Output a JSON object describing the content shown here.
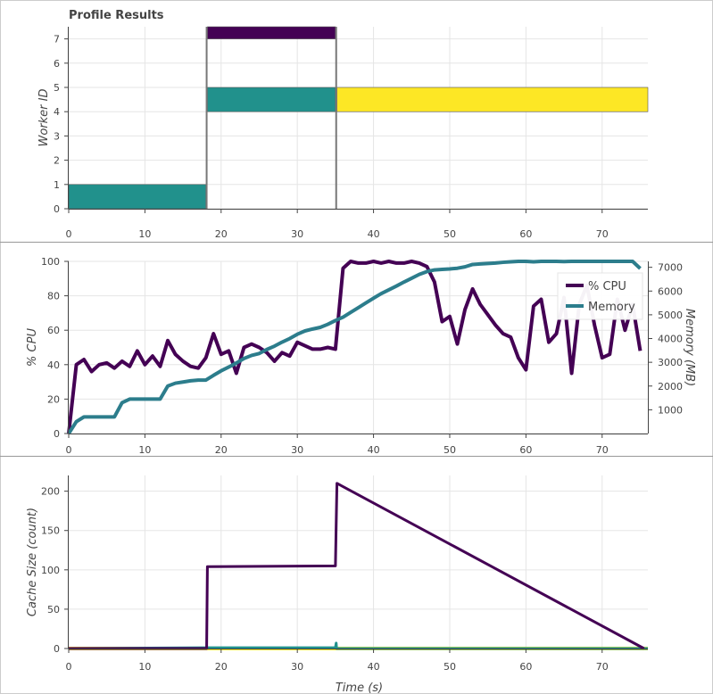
{
  "title": "Profile Results",
  "colors": {
    "purple": "#440154",
    "teal": "#21918c",
    "yellow": "#fde725",
    "memory": "#2c7d8c",
    "grid": "#e5e5e5"
  },
  "chart_data": [
    {
      "type": "bar",
      "name": "profile",
      "title": "Profile Results",
      "xlabel": "",
      "ylabel": "Worker ID",
      "xlim": [
        0,
        76
      ],
      "ylim": [
        0,
        7
      ],
      "xticks": [
        "0",
        "10",
        "20",
        "30",
        "40",
        "50",
        "60",
        "70"
      ],
      "yticks": [
        "0",
        "1",
        "2",
        "3",
        "4",
        "5",
        "6",
        "7"
      ],
      "bars": [
        {
          "start": 0,
          "end": 18,
          "y0": 0,
          "y1": 1,
          "color": "#21918c"
        },
        {
          "start": 18.2,
          "end": 35,
          "y0": 4,
          "y1": 5,
          "color": "#21918c"
        },
        {
          "start": 18.2,
          "end": 35,
          "y0": 7,
          "y1": 7.5,
          "color": "#440154"
        },
        {
          "start": 35.2,
          "end": 76,
          "y0": 4,
          "y1": 5,
          "color": "#fde725"
        }
      ]
    },
    {
      "type": "line",
      "name": "resources",
      "xlabel": "",
      "ylabel": "% CPU",
      "y2label": "Memory (MB)",
      "xlim": [
        0,
        76
      ],
      "ylim": [
        0,
        100
      ],
      "y2lim": [
        0,
        7250
      ],
      "xticks": [
        "0",
        "10",
        "20",
        "30",
        "40",
        "50",
        "60",
        "70"
      ],
      "yticks": [
        "0",
        "20",
        "40",
        "60",
        "80",
        "100"
      ],
      "y2ticks": [
        "1000",
        "2000",
        "3000",
        "4000",
        "5000",
        "6000",
        "7000"
      ],
      "legend": "top-right",
      "series": [
        {
          "name": "% CPU",
          "axis": "left",
          "color": "#440154",
          "x": [
            0,
            1,
            2,
            3,
            4,
            5,
            6,
            7,
            8,
            9,
            10,
            11,
            12,
            13,
            14,
            15,
            16,
            17,
            18,
            19,
            20,
            21,
            22,
            23,
            24,
            25,
            26,
            27,
            28,
            29,
            30,
            31,
            32,
            33,
            34,
            35,
            36,
            37,
            38,
            39,
            40,
            41,
            42,
            43,
            44,
            45,
            46,
            47,
            48,
            49,
            50,
            51,
            52,
            53,
            54,
            55,
            56,
            57,
            58,
            59,
            60,
            61,
            62,
            63,
            64,
            65,
            66,
            67,
            68,
            69,
            70,
            71,
            72,
            73,
            74,
            75
          ],
          "values": [
            0,
            40,
            43,
            36,
            40,
            41,
            38,
            42,
            39,
            48,
            40,
            45,
            39,
            54,
            46,
            42,
            39,
            38,
            44,
            58,
            46,
            48,
            35,
            50,
            52,
            50,
            47,
            42,
            47,
            45,
            53,
            51,
            49,
            49,
            50,
            49,
            96,
            100,
            99,
            99,
            100,
            99,
            100,
            99,
            99,
            100,
            99,
            97,
            88,
            65,
            68,
            52,
            72,
            84,
            75,
            69,
            63,
            58,
            56,
            44,
            37,
            74,
            78,
            53,
            58,
            79,
            35,
            75,
            86,
            63,
            44,
            46,
            78,
            60,
            75,
            48
          ]
        },
        {
          "name": "Memory",
          "axis": "right",
          "color": "#2c7d8c",
          "x": [
            0,
            1,
            2,
            3,
            4,
            5,
            6,
            7,
            8,
            9,
            10,
            11,
            12,
            13,
            14,
            15,
            16,
            17,
            18,
            19,
            20,
            21,
            22,
            23,
            24,
            25,
            26,
            27,
            28,
            29,
            30,
            31,
            32,
            33,
            34,
            35,
            36,
            37,
            38,
            39,
            40,
            41,
            42,
            43,
            44,
            45,
            46,
            47,
            48,
            49,
            50,
            51,
            52,
            53,
            54,
            55,
            56,
            57,
            58,
            59,
            60,
            61,
            62,
            63,
            64,
            65,
            66,
            67,
            68,
            69,
            70,
            71,
            72,
            73,
            74,
            75
          ],
          "values": [
            0,
            500,
            700,
            700,
            700,
            700,
            700,
            1300,
            1450,
            1450,
            1450,
            1450,
            1450,
            2000,
            2120,
            2170,
            2220,
            2250,
            2250,
            2450,
            2640,
            2800,
            2970,
            3160,
            3290,
            3370,
            3540,
            3680,
            3850,
            4000,
            4180,
            4320,
            4400,
            4470,
            4600,
            4760,
            4900,
            5100,
            5300,
            5500,
            5700,
            5890,
            6050,
            6210,
            6380,
            6540,
            6700,
            6820,
            6890,
            6910,
            6930,
            6960,
            7020,
            7120,
            7140,
            7160,
            7180,
            7210,
            7230,
            7250,
            7250,
            7230,
            7250,
            7250,
            7250,
            7240,
            7250,
            7250,
            7250,
            7250,
            7250,
            7250,
            7250,
            7250,
            7250,
            6950
          ]
        }
      ]
    },
    {
      "type": "line",
      "name": "cache",
      "xlabel": "Time (s)",
      "ylabel": "Cache Size (count)",
      "xlim": [
        0,
        76
      ],
      "ylim": [
        0,
        220
      ],
      "xticks": [
        "0",
        "10",
        "20",
        "30",
        "40",
        "50",
        "60",
        "70"
      ],
      "yticks": [
        "0",
        "50",
        "100",
        "150",
        "200"
      ],
      "series": [
        {
          "name": "",
          "color": "#440154",
          "x": [
            0,
            18.1,
            18.2,
            35,
            35.2,
            75.5
          ],
          "values": [
            0,
            0,
            104,
            105,
            210,
            0
          ]
        },
        {
          "name": "",
          "color": "#21918c",
          "x": [
            0,
            18,
            35,
            35.1,
            35.15,
            35.3,
            76
          ],
          "values": [
            0,
            1,
            1,
            7,
            0,
            0,
            0
          ]
        },
        {
          "name": "",
          "color": "#fde725",
          "x": [
            0,
            35.2,
            76
          ],
          "values": [
            0,
            0,
            0
          ]
        }
      ]
    }
  ]
}
